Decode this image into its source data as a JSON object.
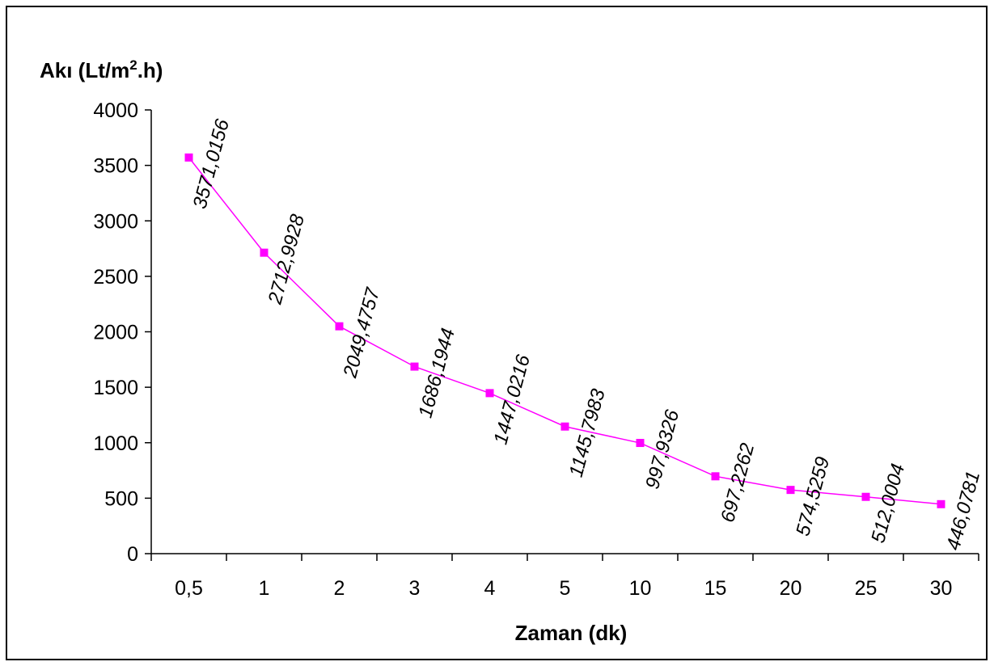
{
  "chart_data": {
    "type": "line",
    "title": "",
    "xlabel": "Zaman (dk)",
    "ylabel": {
      "main": "Akı (Lt/m",
      "sup": "2",
      "tail": ".h)"
    },
    "categories": [
      "0,5",
      "1",
      "2",
      "3",
      "4",
      "5",
      "10",
      "15",
      "20",
      "25",
      "30"
    ],
    "values": [
      3571.0156,
      2712.9928,
      2049.4757,
      1686.1944,
      1447.0216,
      1145.7983,
      997.9326,
      697.2262,
      574.5259,
      512.0004,
      446.0781
    ],
    "data_labels": [
      "3571,0156",
      "2712,9928",
      "2049,4757",
      "1686,1944",
      "1447,0216",
      "1145,7983",
      "997,9326",
      "697,2262",
      "574,5259",
      "512,0004",
      "446,0781"
    ],
    "y_ticks": [
      "0",
      "500",
      "1000",
      "1500",
      "2000",
      "2500",
      "3000",
      "3500",
      "4000"
    ],
    "ylim": [
      0,
      4000
    ],
    "grid": false,
    "legend": "none",
    "series_color": "#ff00ff"
  }
}
